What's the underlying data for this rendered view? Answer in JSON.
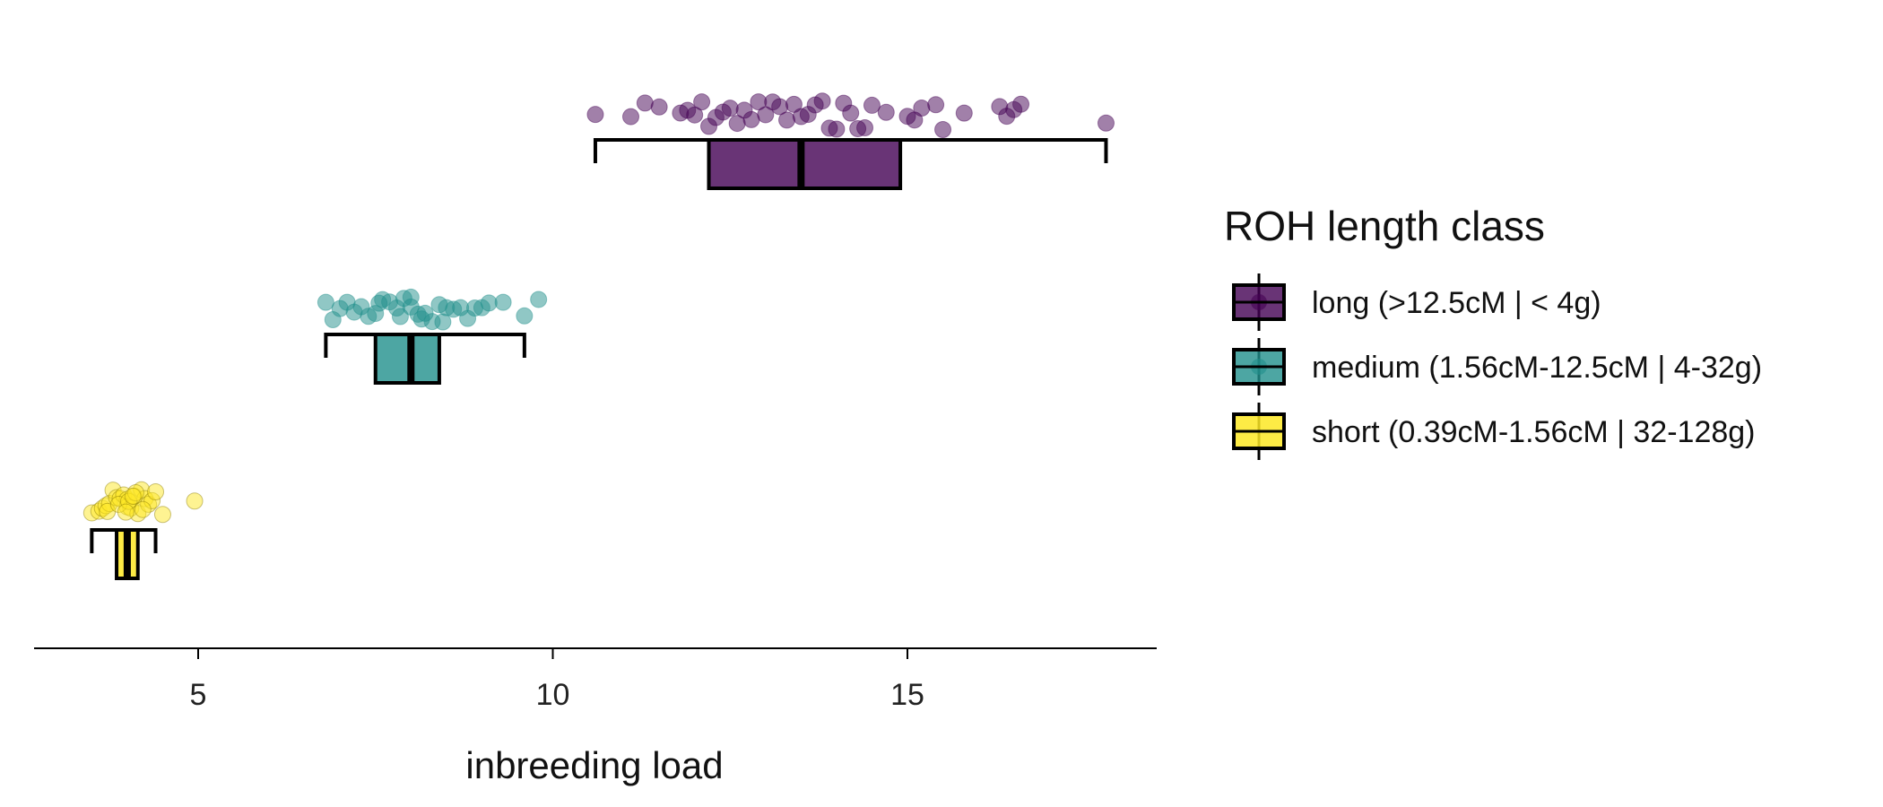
{
  "chart_data": {
    "type": "boxplot-with-jitter",
    "title": "",
    "xlabel": "inbreeding load",
    "ylabel": "",
    "xlim": [
      2.7,
      18.5
    ],
    "xticks": [
      5,
      10,
      15
    ],
    "grid": false,
    "legend": {
      "title": "ROH length class",
      "placement": "right",
      "entries": [
        {
          "name": "long (>12.5cM | < 4g)",
          "color": "#440154"
        },
        {
          "name": "medium (1.56cM-12.5cM | 4-32g)",
          "color": "#21908C"
        },
        {
          "name": "short (0.39cM-1.56cM | 32-128g)",
          "color": "#FDE725"
        }
      ]
    },
    "series": [
      {
        "name": "long (>12.5cM | < 4g)",
        "color": "#440154",
        "box": {
          "min": 10.6,
          "q1": 12.2,
          "median": 13.5,
          "q3": 14.9,
          "max": 17.8
        },
        "points": [
          10.6,
          11.1,
          11.3,
          11.5,
          11.8,
          12.0,
          12.1,
          12.2,
          12.3,
          12.4,
          12.5,
          12.6,
          12.8,
          12.9,
          13.0,
          13.2,
          13.3,
          13.4,
          13.5,
          13.6,
          13.7,
          13.8,
          13.9,
          14.0,
          14.1,
          14.2,
          14.3,
          14.5,
          14.7,
          15.0,
          15.1,
          15.2,
          15.4,
          15.5,
          15.8,
          16.3,
          16.4,
          16.5,
          16.6,
          17.8,
          11.9,
          12.7,
          13.1,
          14.4
        ]
      },
      {
        "name": "medium (1.56cM-12.5cM | 4-32g)",
        "color": "#21908C",
        "box": {
          "min": 6.8,
          "q1": 7.5,
          "median": 8.0,
          "q3": 8.4,
          "max": 9.6
        },
        "points": [
          6.8,
          6.9,
          7.0,
          7.1,
          7.2,
          7.3,
          7.4,
          7.5,
          7.6,
          7.7,
          7.8,
          7.9,
          8.0,
          8.0,
          8.1,
          8.2,
          8.3,
          8.4,
          8.5,
          8.6,
          8.7,
          8.8,
          8.9,
          9.0,
          9.1,
          9.3,
          9.6,
          9.8,
          7.55,
          7.85,
          8.15,
          8.45
        ]
      },
      {
        "name": "short (0.39cM-1.56cM | 32-128g)",
        "color": "#FDE725",
        "box": {
          "min": 3.5,
          "q1": 3.85,
          "median": 4.0,
          "q3": 4.15,
          "max": 4.4
        },
        "points": [
          3.5,
          3.6,
          3.65,
          3.7,
          3.75,
          3.8,
          3.85,
          3.9,
          3.95,
          4.0,
          4.0,
          4.05,
          4.1,
          4.15,
          4.2,
          4.25,
          4.3,
          4.35,
          4.4,
          4.5,
          4.95,
          3.72,
          3.88,
          4.02,
          4.12,
          4.22,
          3.98,
          4.08
        ]
      }
    ]
  }
}
